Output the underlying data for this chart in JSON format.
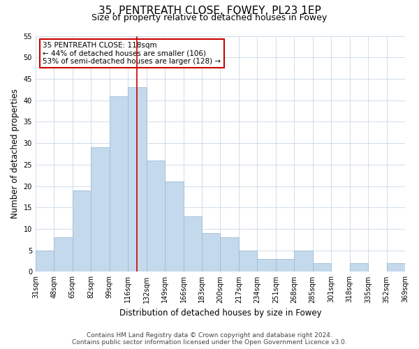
{
  "title": "35, PENTREATH CLOSE, FOWEY, PL23 1EP",
  "subtitle": "Size of property relative to detached houses in Fowey",
  "xlabel": "Distribution of detached houses by size in Fowey",
  "ylabel": "Number of detached properties",
  "bar_values": [
    5,
    8,
    19,
    29,
    41,
    43,
    26,
    21,
    13,
    9,
    8,
    5,
    3,
    3,
    5,
    2,
    0,
    2,
    0,
    2
  ],
  "bin_labels": [
    "31sqm",
    "48sqm",
    "65sqm",
    "82sqm",
    "99sqm",
    "116sqm",
    "132sqm",
    "149sqm",
    "166sqm",
    "183sqm",
    "200sqm",
    "217sqm",
    "234sqm",
    "251sqm",
    "268sqm",
    "285sqm",
    "301sqm",
    "318sqm",
    "335sqm",
    "352sqm",
    "369sqm"
  ],
  "bar_color": "#c5d9ec",
  "bar_edge_color": "#9bbdd6",
  "vline_bin_index": 5,
  "vline_color": "#cc0000",
  "annotation_title": "35 PENTREATH CLOSE: 118sqm",
  "annotation_line1": "← 44% of detached houses are smaller (106)",
  "annotation_line2": "53% of semi-detached houses are larger (128) →",
  "annotation_box_edge": "#cc0000",
  "ylim": [
    0,
    55
  ],
  "yticks": [
    0,
    5,
    10,
    15,
    20,
    25,
    30,
    35,
    40,
    45,
    50,
    55
  ],
  "footer_line1": "Contains HM Land Registry data © Crown copyright and database right 2024.",
  "footer_line2": "Contains public sector information licensed under the Open Government Licence v3.0.",
  "title_fontsize": 11,
  "subtitle_fontsize": 9,
  "axis_label_fontsize": 8.5,
  "tick_fontsize": 7,
  "annotation_fontsize": 7.5,
  "footer_fontsize": 6.5,
  "background_color": "#ffffff",
  "grid_color": "#d0dcea"
}
